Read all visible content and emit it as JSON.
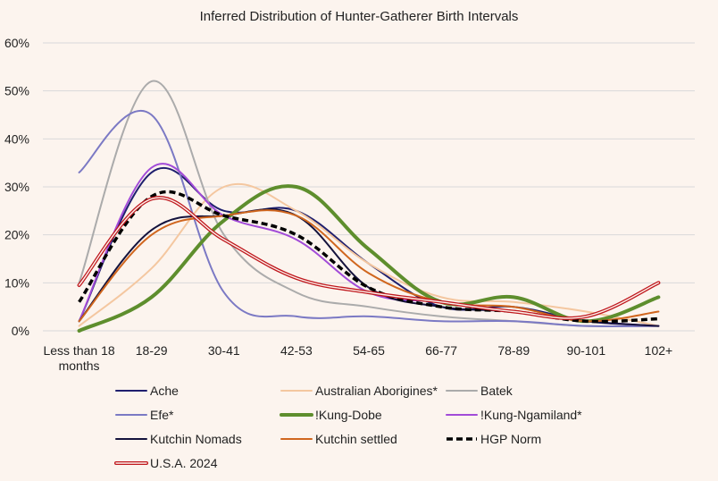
{
  "chart_data": {
    "type": "line",
    "title": "Inferred Distribution of Hunter-Gatherer Birth Intervals",
    "xlabel": "",
    "ylabel": "",
    "categories": [
      "Less than 18 months",
      "18-29",
      "30-41",
      "42-53",
      "54-65",
      "66-77",
      "78-89",
      "90-101",
      "102+"
    ],
    "y_ticks": [
      "0%",
      "10%",
      "20%",
      "30%",
      "40%",
      "50%",
      "60%"
    ],
    "ylim": [
      0,
      60
    ],
    "grid": true,
    "legend_position": "bottom",
    "series": [
      {
        "name": "Ache",
        "color": "#1F1F6E",
        "style": "solid",
        "values": [
          2,
          33,
          25,
          25,
          14,
          5,
          5,
          2,
          1
        ]
      },
      {
        "name": "Australian Aborigines*",
        "color": "#F4C7A0",
        "style": "solid",
        "values": [
          1,
          13,
          30,
          25,
          14,
          7,
          6,
          4,
          1
        ]
      },
      {
        "name": "Batek",
        "color": "#ABABAB",
        "style": "solid",
        "values": [
          10,
          52,
          20,
          8,
          5,
          3,
          2,
          1,
          1
        ]
      },
      {
        "name": "Efe*",
        "color": "#7B79C4",
        "style": "solid",
        "values": [
          33,
          45,
          8,
          3,
          3,
          2,
          2,
          1,
          1
        ]
      },
      {
        "name": "!Kung-Dobe",
        "color": "#5E8E2D",
        "style": "thick",
        "values": [
          0,
          7,
          23,
          30,
          17,
          6,
          7,
          2,
          7
        ]
      },
      {
        "name": "!Kung-Ngamiland*",
        "color": "#A24BD8",
        "style": "solid",
        "values": [
          2,
          34,
          24,
          19,
          8,
          6,
          4,
          2,
          1
        ]
      },
      {
        "name": "Kutchin Nomads",
        "color": "#14123C",
        "style": "solid",
        "values": [
          2,
          21,
          24,
          24,
          9,
          5,
          4,
          2,
          1
        ]
      },
      {
        "name": "Kutchin settled",
        "color": "#D0661E",
        "style": "solid",
        "values": [
          2,
          20,
          24,
          24,
          12,
          6,
          5,
          2,
          4
        ]
      },
      {
        "name": "HGP Norm",
        "color": "#000000",
        "style": "dashed",
        "values": [
          6,
          28,
          24,
          20,
          9,
          5,
          4,
          2,
          2.5
        ]
      },
      {
        "name": "U.S.A. 2024",
        "color": "#C0181E",
        "style": "double",
        "values": [
          9.5,
          27.5,
          19,
          11,
          8,
          6,
          4,
          3,
          10
        ]
      }
    ]
  }
}
